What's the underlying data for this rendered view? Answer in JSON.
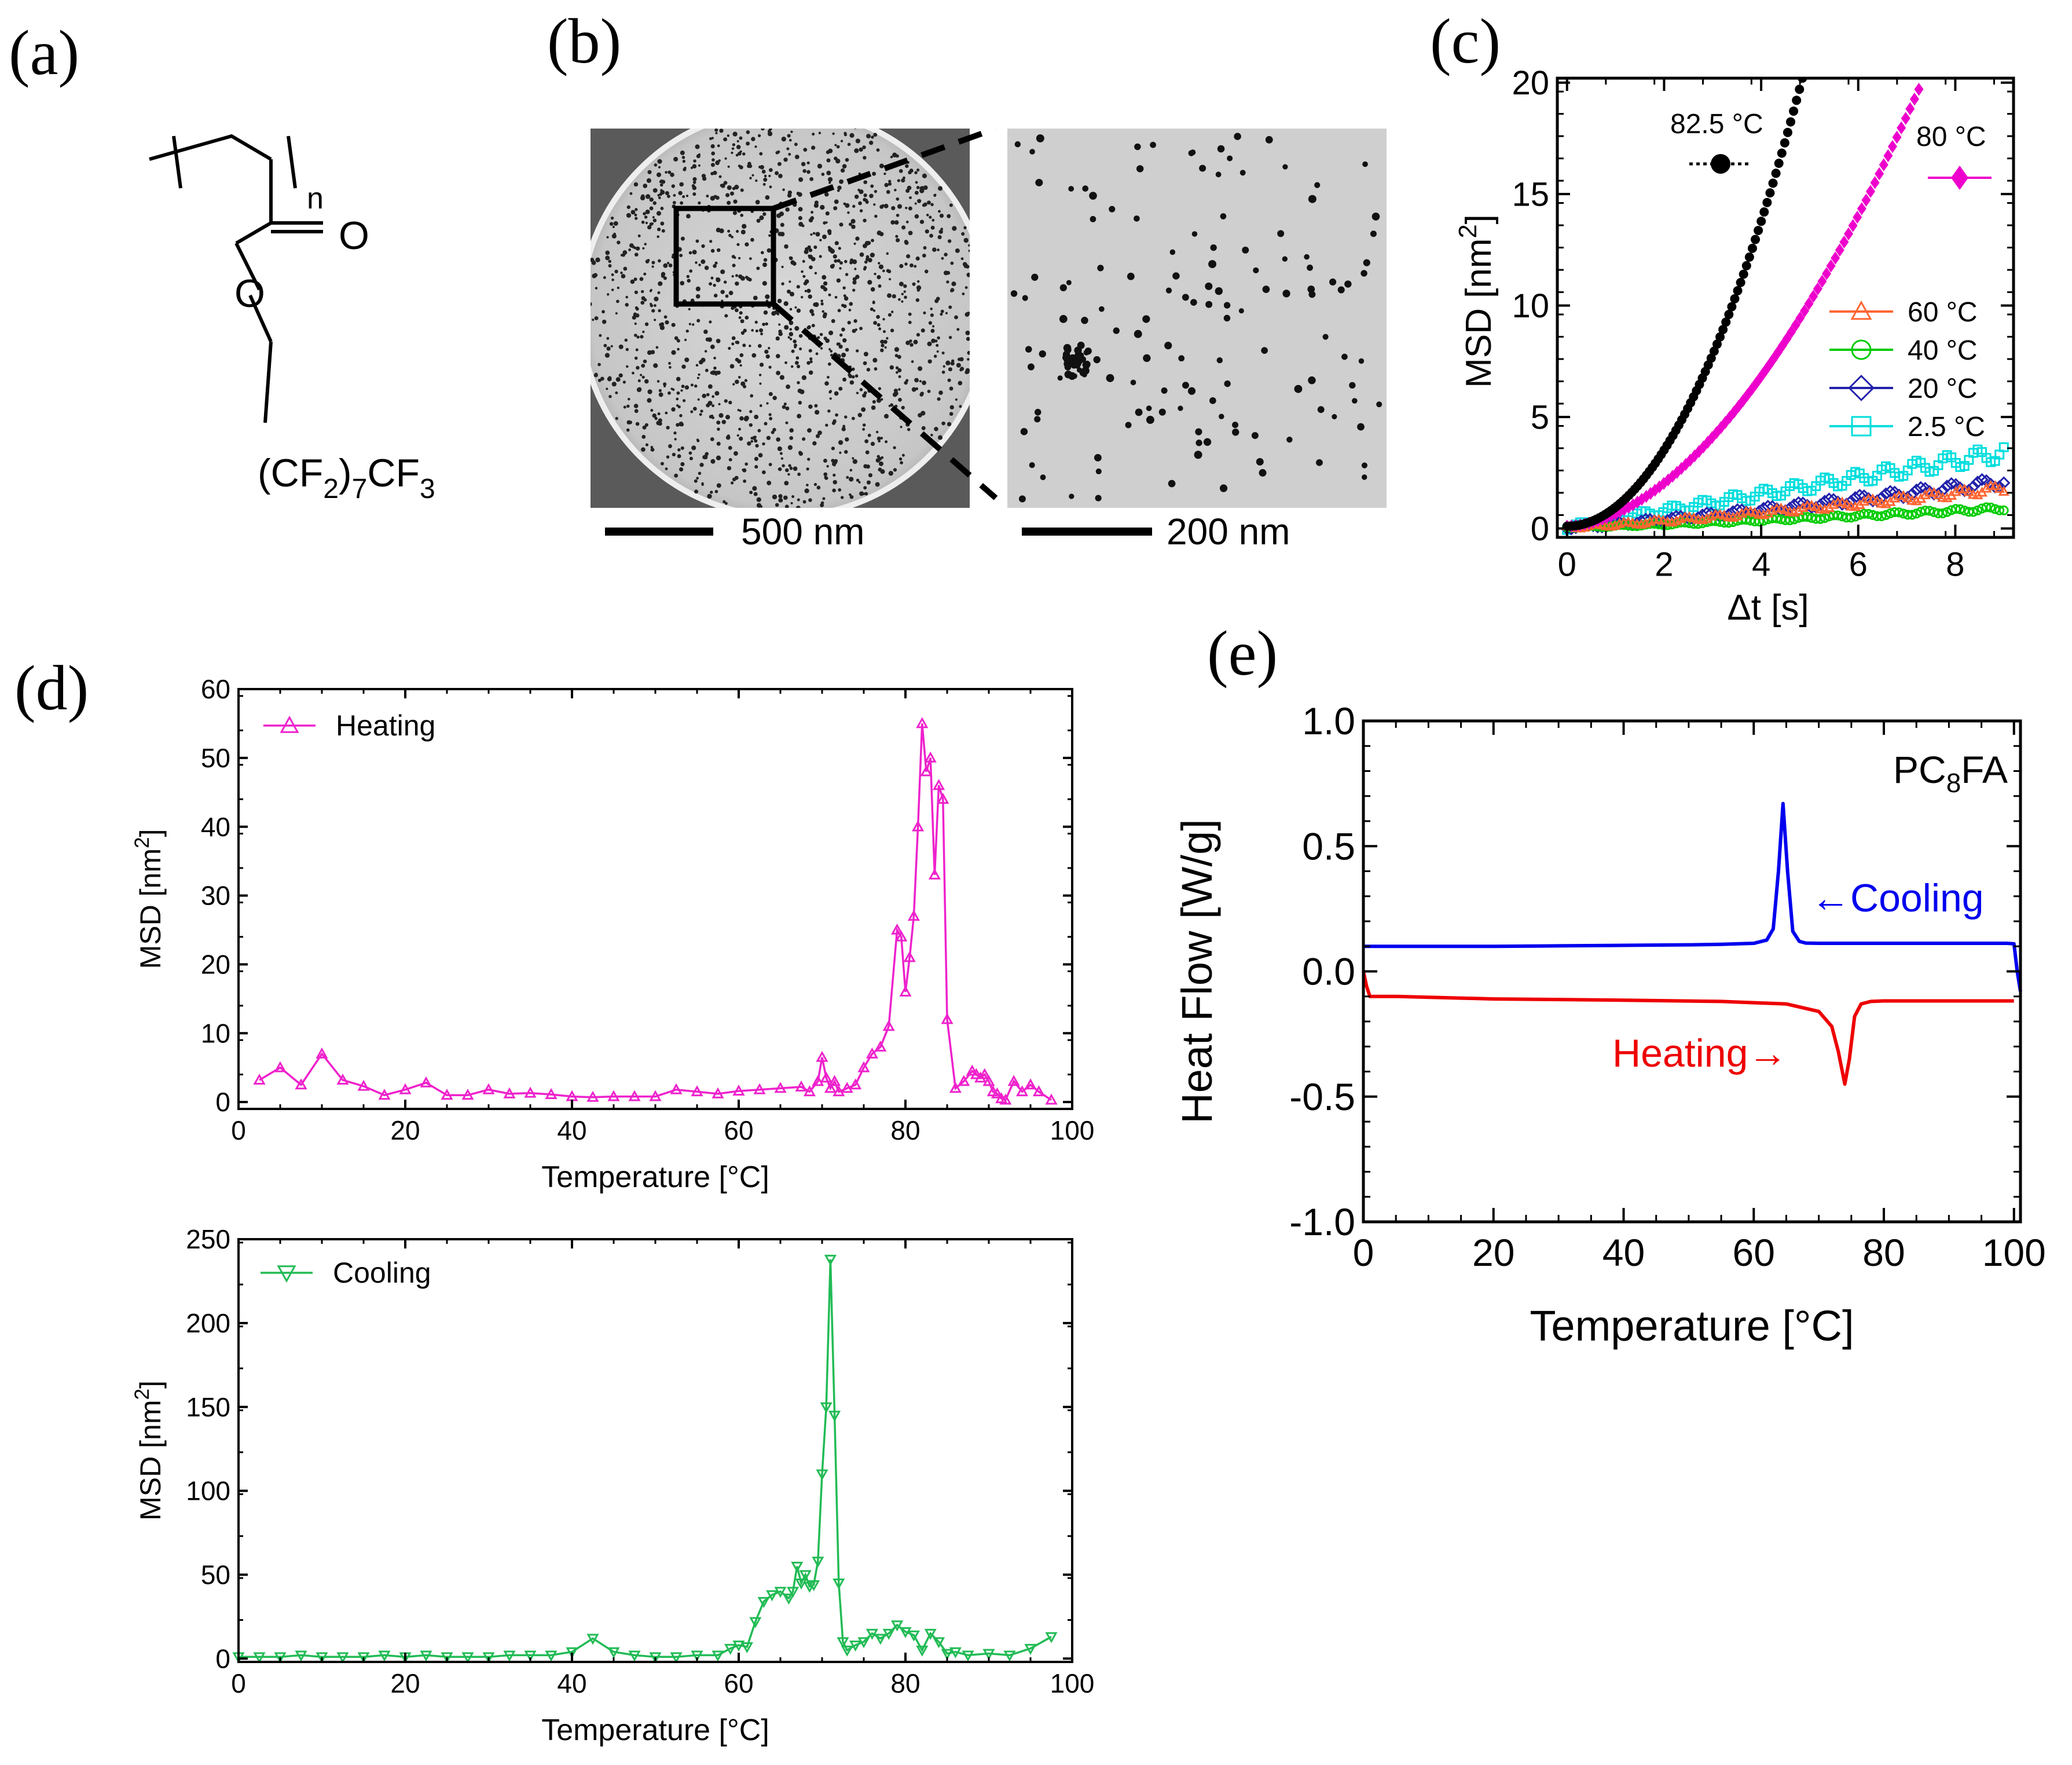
{
  "panels": {
    "a": {
      "label": "(a)",
      "structure": {
        "n": "n",
        "O_carbonyl": "O",
        "O_ester": "O",
        "tail_pre": "(CF",
        "tail_sub1": "2",
        "tail_mid": ")",
        "tail_sub2": "7",
        "tail_post": "CF",
        "tail_sub3": "3"
      }
    },
    "b": {
      "label": "(b)",
      "scalebar_left": "500 nm",
      "scalebar_right": "200 nm"
    },
    "c": {
      "label": "(c)"
    },
    "d": {
      "label": "(d)"
    },
    "e": {
      "label": "(e)"
    }
  },
  "chart_data": [
    {
      "id": "c",
      "type": "scatter",
      "title": "",
      "xlabel": "Δt [s]",
      "ylabel_pre": "MSD [nm",
      "ylabel_sup": "2",
      "ylabel_post": "]",
      "xlim": [
        -0.2,
        9.2
      ],
      "ylim": [
        -0.4,
        20.2
      ],
      "xticks": [
        0,
        2,
        4,
        6,
        8
      ],
      "yticks": [
        0,
        5,
        10,
        15,
        20
      ],
      "series": [
        {
          "name": "82.5 °C",
          "color": "#000000",
          "marker": "circle-filled",
          "x_end": 4.85,
          "y_end": 20.2,
          "power": 2.0,
          "y0": 0.1
        },
        {
          "name": "80 °C",
          "color": "#ee00cc",
          "marker": "diamond-filled",
          "x_end": 7.25,
          "y_end": 19.7,
          "power": 1.8,
          "y0": 0.1
        },
        {
          "name": "60 °C",
          "color": "#ff6633",
          "marker": "triangle-open",
          "x_end": 9.0,
          "y_end": 1.8,
          "power": 1.2,
          "y0": 0.05
        },
        {
          "name": "40 °C",
          "color": "#00cc00",
          "marker": "circle-open",
          "x_end": 9.0,
          "y_end": 0.9,
          "power": 1.2,
          "y0": 0.05
        },
        {
          "name": "20 °C",
          "color": "#2222aa",
          "marker": "diamond-open",
          "x_end": 9.0,
          "y_end": 2.1,
          "power": 1.2,
          "y0": 0.05
        },
        {
          "name": "2.5 °C",
          "color": "#00dddd",
          "marker": "square-open",
          "x_end": 9.0,
          "y_end": 3.4,
          "power": 1.0,
          "y0": 0.05
        }
      ]
    },
    {
      "id": "d-heating",
      "type": "line",
      "xlabel": "Temperature [°C]",
      "ylabel_pre": "MSD [nm",
      "ylabel_sup": "2",
      "ylabel_post": "]",
      "xlim": [
        0,
        100
      ],
      "ylim": [
        -1,
        60
      ],
      "xticks": [
        0,
        20,
        40,
        60,
        80,
        100
      ],
      "yticks": [
        0,
        10,
        20,
        30,
        40,
        50,
        60
      ],
      "legend": "Heating",
      "color": "#ee22cc",
      "marker": "triangle-up-open",
      "x": [
        2.5,
        5,
        7.5,
        10,
        12.5,
        15,
        17.5,
        20,
        22.5,
        25,
        27.5,
        30,
        32.5,
        35,
        37.5,
        40,
        42.5,
        45,
        47.5,
        50,
        52.5,
        55,
        57.5,
        60,
        62.5,
        65,
        67.5,
        68.5,
        69.5,
        70,
        70.5,
        71,
        71.5,
        72,
        73,
        74,
        75,
        76,
        77,
        78,
        79,
        79.5,
        80,
        80.5,
        81,
        81.5,
        82,
        82.5,
        83,
        83.5,
        84,
        84.5,
        85,
        86,
        87,
        88,
        88.5,
        89,
        89.5,
        90,
        90.5,
        91,
        91.5,
        92,
        93,
        94,
        95,
        96,
        97.5
      ],
      "y": [
        3.2,
        5,
        2.5,
        7,
        3.2,
        2.3,
        1,
        1.8,
        2.8,
        1,
        1,
        1.8,
        1.2,
        1.3,
        1.1,
        0.8,
        0.7,
        0.8,
        0.8,
        0.8,
        1.8,
        1.5,
        1.2,
        1.6,
        1.8,
        2,
        2.2,
        1.5,
        3,
        6.5,
        3.5,
        2,
        3,
        1.5,
        2,
        2.5,
        5,
        7,
        8,
        11,
        25,
        24,
        16,
        21,
        27,
        40,
        55,
        48,
        50,
        33,
        46,
        44,
        12,
        2,
        3,
        4.5,
        4,
        3.5,
        4,
        3,
        1.5,
        1.2,
        0.5,
        0.3,
        3,
        1.5,
        2.5,
        1.5,
        0.3
      ]
    },
    {
      "id": "d-cooling",
      "type": "line",
      "xlabel": "Temperature [°C]",
      "ylabel_pre": "MSD [nm",
      "ylabel_sup": "2",
      "ylabel_post": "]",
      "xlim": [
        0,
        100
      ],
      "ylim": [
        -2,
        250
      ],
      "xticks": [
        0,
        20,
        40,
        60,
        80,
        100
      ],
      "yticks": [
        0,
        50,
        100,
        150,
        200,
        250
      ],
      "legend": "Cooling",
      "color": "#22bb55",
      "marker": "triangle-down-open",
      "x": [
        0,
        2.5,
        5,
        7.5,
        10,
        12.5,
        15,
        17.5,
        20,
        22.5,
        25,
        27.5,
        30,
        32.5,
        35,
        37.5,
        40,
        42.5,
        45,
        47.5,
        50,
        52.5,
        55,
        57.5,
        59,
        60,
        61,
        62,
        63,
        64,
        65,
        66,
        66.5,
        67,
        67.5,
        68,
        68.5,
        69,
        69.5,
        70,
        70.5,
        71,
        71.5,
        72,
        72.5,
        73,
        74,
        75,
        76,
        77,
        78,
        79,
        80,
        81,
        82,
        83,
        84,
        85,
        86,
        87.5,
        90,
        92.5,
        95,
        97.5
      ],
      "y": [
        1,
        1,
        1,
        2,
        1,
        1,
        1,
        2,
        1,
        2,
        1,
        1,
        1,
        2,
        2,
        2,
        4,
        12,
        4,
        2,
        1,
        1,
        2,
        2,
        6,
        8,
        7,
        22,
        34,
        38,
        40,
        36,
        40,
        55,
        45,
        50,
        43,
        44,
        58,
        110,
        150,
        238,
        145,
        45,
        10,
        5,
        8,
        10,
        15,
        12,
        15,
        20,
        16,
        14,
        5,
        15,
        10,
        3,
        4,
        2,
        3,
        2,
        6,
        13
      ]
    },
    {
      "id": "e",
      "type": "line",
      "xlabel": "Temperature [°C]",
      "ylabel": "Heat Flow [W/g]",
      "xlim": [
        0,
        101
      ],
      "ylim": [
        -1.0,
        1.0
      ],
      "xticks": [
        0,
        20,
        40,
        60,
        80,
        100
      ],
      "yticks": [
        1.0,
        0.5,
        0.0,
        -0.5,
        -1.0
      ],
      "ytick_labels": [
        "1.0",
        "0.5",
        "0.0",
        "-0.5",
        "-1.0"
      ],
      "annotation_pre": "PC",
      "annotation_sub": "8",
      "annotation_post": "FA",
      "series": [
        {
          "name": "Cooling",
          "label": "←Cooling",
          "color": "#0000ee",
          "x": [
            0,
            10,
            20,
            30,
            40,
            50,
            55,
            60,
            62,
            63,
            63.8,
            64.5,
            65.2,
            66,
            67,
            68,
            70,
            80,
            90,
            99,
            100,
            100.5,
            101
          ],
          "y": [
            0.1,
            0.1,
            0.1,
            0.102,
            0.104,
            0.106,
            0.108,
            0.112,
            0.125,
            0.17,
            0.4,
            0.67,
            0.4,
            0.16,
            0.12,
            0.113,
            0.112,
            0.112,
            0.112,
            0.112,
            0.11,
            0.0,
            -0.08
          ]
        },
        {
          "name": "Heating",
          "label": "Heating→",
          "color": "#ee0000",
          "x": [
            0,
            0.5,
            1,
            5,
            20,
            40,
            55,
            65,
            70,
            72,
            73,
            74,
            74.7,
            75.5,
            76.5,
            78,
            80,
            90,
            100
          ],
          "y": [
            0.0,
            -0.06,
            -0.1,
            -0.1,
            -0.11,
            -0.115,
            -0.12,
            -0.13,
            -0.16,
            -0.22,
            -0.32,
            -0.45,
            -0.35,
            -0.18,
            -0.13,
            -0.12,
            -0.118,
            -0.118,
            -0.118
          ]
        }
      ]
    }
  ]
}
